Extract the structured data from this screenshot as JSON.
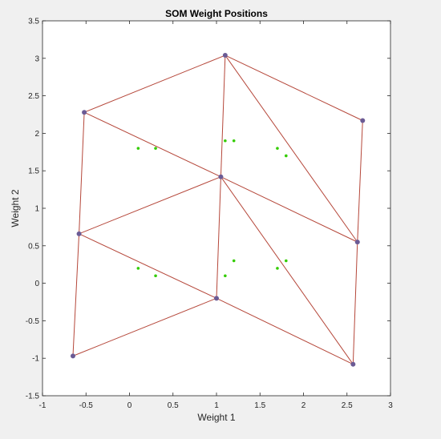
{
  "chart_data": {
    "type": "scatter",
    "title": "SOM Weight Positions",
    "xlabel": "Weight 1",
    "ylabel": "Weight 2",
    "xlim": [
      -1,
      3
    ],
    "ylim": [
      -1.5,
      3.5
    ],
    "xticks": [
      -1,
      -0.5,
      0,
      0.5,
      1,
      1.5,
      2,
      2.5,
      3
    ],
    "yticks": [
      -1.5,
      -1,
      -0.5,
      0,
      0.5,
      1,
      1.5,
      2,
      2.5,
      3,
      3.5
    ],
    "grid": false,
    "series": [
      {
        "role": "input-data",
        "color": "#33cc00",
        "points": [
          [
            0.1,
            1.8
          ],
          [
            0.3,
            1.8
          ],
          [
            1.1,
            1.9
          ],
          [
            1.2,
            1.9
          ],
          [
            1.7,
            1.8
          ],
          [
            1.8,
            1.7
          ],
          [
            0.1,
            0.2
          ],
          [
            0.3,
            0.1
          ],
          [
            1.1,
            0.1
          ],
          [
            1.2,
            0.3
          ],
          [
            1.7,
            0.2
          ],
          [
            1.8,
            0.3
          ]
        ]
      },
      {
        "role": "neuron-weights",
        "color": "#6b5b95",
        "points": [
          [
            -0.65,
            -0.97
          ],
          [
            1.0,
            -0.2
          ],
          [
            2.57,
            -1.08
          ],
          [
            -0.58,
            0.66
          ],
          [
            1.05,
            1.42
          ],
          [
            2.62,
            0.55
          ],
          [
            -0.52,
            2.28
          ],
          [
            1.1,
            3.04
          ],
          [
            2.68,
            2.17
          ]
        ]
      }
    ],
    "edges": {
      "color": "#b5473a",
      "pairs": [
        [
          0,
          1
        ],
        [
          1,
          2
        ],
        [
          3,
          4
        ],
        [
          4,
          5
        ],
        [
          6,
          7
        ],
        [
          7,
          8
        ],
        [
          0,
          3
        ],
        [
          3,
          6
        ],
        [
          1,
          4
        ],
        [
          4,
          7
        ],
        [
          2,
          5
        ],
        [
          5,
          8
        ],
        [
          1,
          3
        ],
        [
          2,
          4
        ],
        [
          4,
          6
        ],
        [
          5,
          7
        ]
      ]
    }
  }
}
